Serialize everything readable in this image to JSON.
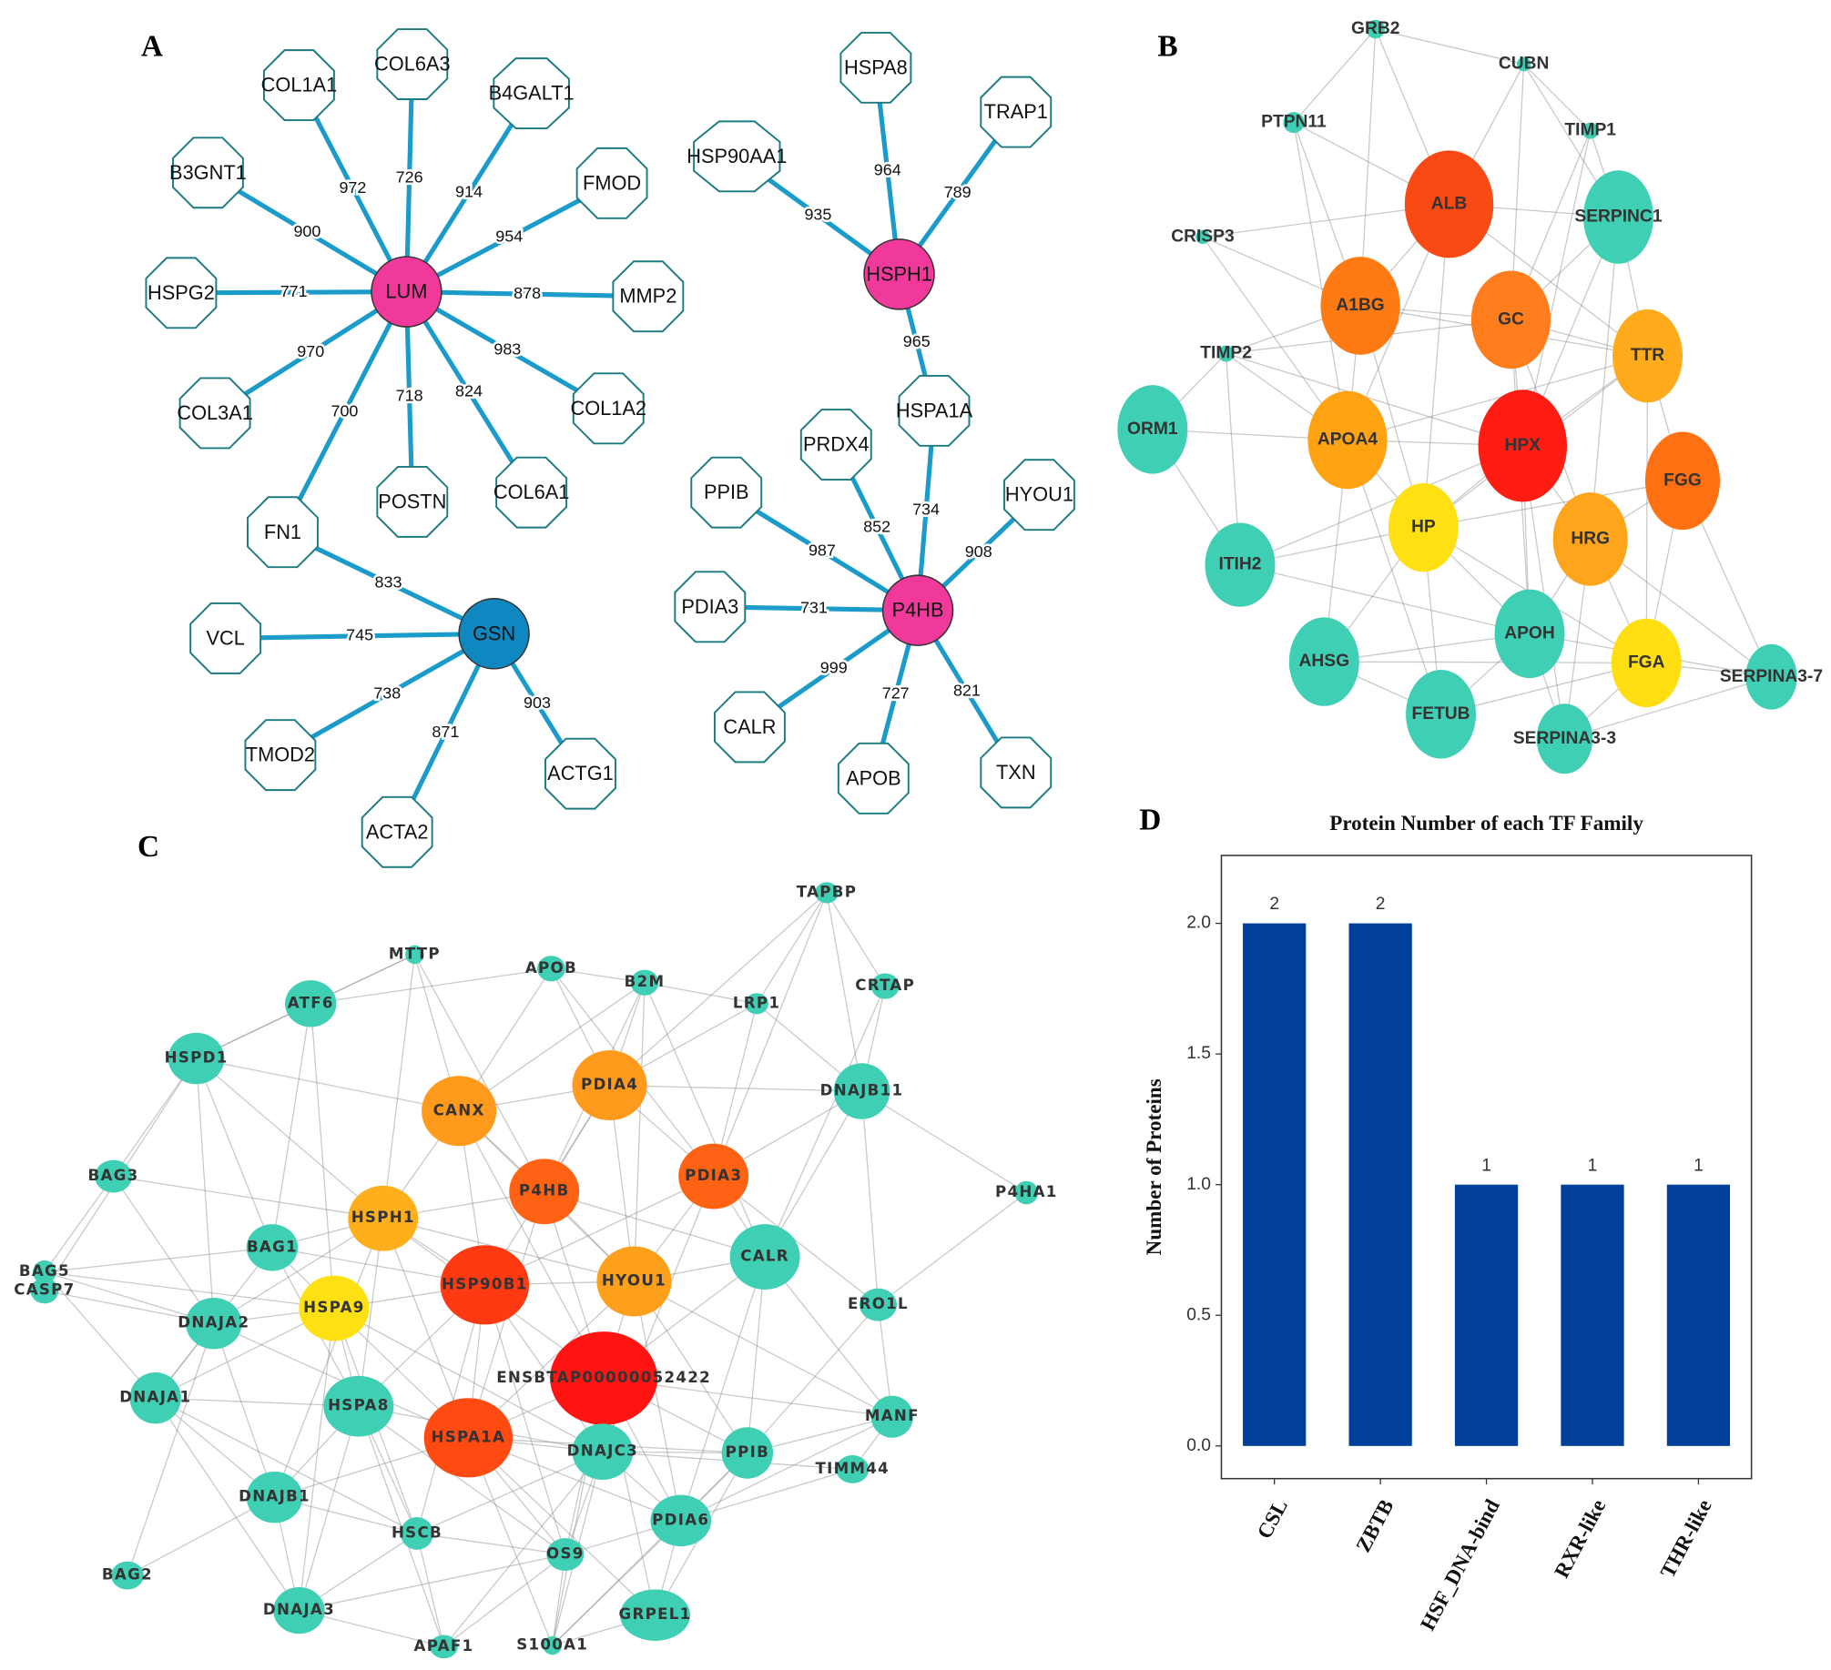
{
  "panel_labels": [
    "A",
    "B",
    "C",
    "D"
  ],
  "network_a": {
    "nodes": [
      {
        "label": "LUM",
        "shape": "circle",
        "color": "#f0399a"
      },
      {
        "label": "HSPH1",
        "shape": "circle",
        "color": "#f0399a"
      },
      {
        "label": "P4HB",
        "shape": "circle",
        "color": "#f0399a"
      },
      {
        "label": "GSN",
        "shape": "circle",
        "color": "#0f87c0"
      },
      {
        "label": "COL1A1",
        "shape": "octagon",
        "color": "#ffffff"
      },
      {
        "label": "COL6A3",
        "shape": "octagon",
        "color": "#ffffff"
      },
      {
        "label": "B4GALT1",
        "shape": "octagon",
        "color": "#ffffff"
      },
      {
        "label": "FMOD",
        "shape": "octagon",
        "color": "#ffffff"
      },
      {
        "label": "MMP2",
        "shape": "octagon",
        "color": "#ffffff"
      },
      {
        "label": "COL1A2",
        "shape": "octagon",
        "color": "#ffffff"
      },
      {
        "label": "COL6A1",
        "shape": "octagon",
        "color": "#ffffff"
      },
      {
        "label": "POSTN",
        "shape": "octagon",
        "color": "#ffffff"
      },
      {
        "label": "FN1",
        "shape": "octagon",
        "color": "#ffffff"
      },
      {
        "label": "COL3A1",
        "shape": "octagon",
        "color": "#ffffff"
      },
      {
        "label": "HSPG2",
        "shape": "octagon",
        "color": "#ffffff"
      },
      {
        "label": "B3GNT1",
        "shape": "octagon",
        "color": "#ffffff"
      },
      {
        "label": "VCL",
        "shape": "octagon",
        "color": "#ffffff"
      },
      {
        "label": "TMOD2",
        "shape": "octagon",
        "color": "#ffffff"
      },
      {
        "label": "ACTA2",
        "shape": "octagon",
        "color": "#ffffff"
      },
      {
        "label": "ACTG1",
        "shape": "octagon",
        "color": "#ffffff"
      },
      {
        "label": "HSPA8",
        "shape": "octagon",
        "color": "#ffffff"
      },
      {
        "label": "TRAP1",
        "shape": "octagon",
        "color": "#ffffff"
      },
      {
        "label": "HSP90AA1",
        "shape": "octagon",
        "color": "#ffffff"
      },
      {
        "label": "HSPA1A",
        "shape": "octagon",
        "color": "#ffffff"
      },
      {
        "label": "PRDX4",
        "shape": "octagon",
        "color": "#ffffff"
      },
      {
        "label": "PPIB",
        "shape": "octagon",
        "color": "#ffffff"
      },
      {
        "label": "HYOU1",
        "shape": "octagon",
        "color": "#ffffff"
      },
      {
        "label": "PDIA3",
        "shape": "octagon",
        "color": "#ffffff"
      },
      {
        "label": "CALR",
        "shape": "octagon",
        "color": "#ffffff"
      },
      {
        "label": "APOB",
        "shape": "octagon",
        "color": "#ffffff"
      },
      {
        "label": "TXN",
        "shape": "octagon",
        "color": "#ffffff"
      }
    ],
    "edges": [
      {
        "source": "LUM",
        "target": "COL1A1",
        "weight": 972
      },
      {
        "source": "LUM",
        "target": "COL6A3",
        "weight": 726
      },
      {
        "source": "LUM",
        "target": "B4GALT1",
        "weight": 914
      },
      {
        "source": "LUM",
        "target": "FMOD",
        "weight": 954
      },
      {
        "source": "LUM",
        "target": "MMP2",
        "weight": 878
      },
      {
        "source": "LUM",
        "target": "COL1A2",
        "weight": 983
      },
      {
        "source": "LUM",
        "target": "COL6A1",
        "weight": 824
      },
      {
        "source": "LUM",
        "target": "POSTN",
        "weight": 718
      },
      {
        "source": "LUM",
        "target": "FN1",
        "weight": 700
      },
      {
        "source": "LUM",
        "target": "COL3A1",
        "weight": 970
      },
      {
        "source": "LUM",
        "target": "HSPG2",
        "weight": 771
      },
      {
        "source": "LUM",
        "target": "B3GNT1",
        "weight": 900
      },
      {
        "source": "GSN",
        "target": "FN1",
        "weight": 833
      },
      {
        "source": "GSN",
        "target": "VCL",
        "weight": 745
      },
      {
        "source": "GSN",
        "target": "TMOD2",
        "weight": 738
      },
      {
        "source": "GSN",
        "target": "ACTA2",
        "weight": 871
      },
      {
        "source": "GSN",
        "target": "ACTG1",
        "weight": 903
      },
      {
        "source": "HSPH1",
        "target": "HSPA8",
        "weight": 964
      },
      {
        "source": "HSPH1",
        "target": "TRAP1",
        "weight": 789
      },
      {
        "source": "HSPH1",
        "target": "HSP90AA1",
        "weight": 935
      },
      {
        "source": "HSPH1",
        "target": "HSPA1A",
        "weight": 965
      },
      {
        "source": "P4HB",
        "target": "HSPA1A",
        "weight": 734
      },
      {
        "source": "P4HB",
        "target": "PRDX4",
        "weight": 852
      },
      {
        "source": "P4HB",
        "target": "PPIB",
        "weight": 987
      },
      {
        "source": "P4HB",
        "target": "HYOU1",
        "weight": 908
      },
      {
        "source": "P4HB",
        "target": "PDIA3",
        "weight": 731
      },
      {
        "source": "P4HB",
        "target": "CALR",
        "weight": 999
      },
      {
        "source": "P4HB",
        "target": "APOB",
        "weight": 727
      },
      {
        "source": "P4HB",
        "target": "TXN",
        "weight": 821
      }
    ]
  },
  "network_b": {
    "nodes": [
      {
        "label": "GRB2",
        "color": "#3fcfb4"
      },
      {
        "label": "CUBN",
        "color": "#3fcfb4"
      },
      {
        "label": "PTPN11",
        "color": "#3fcfb4"
      },
      {
        "label": "TIMP1",
        "color": "#3fcfb4"
      },
      {
        "label": "CRISP3",
        "color": "#3fcfb4"
      },
      {
        "label": "TIMP2",
        "color": "#3fcfb4"
      },
      {
        "label": "ALB",
        "color": "#f84a12"
      },
      {
        "label": "SERPINC1",
        "color": "#3fcfb4"
      },
      {
        "label": "A1BG",
        "color": "#ff7a12"
      },
      {
        "label": "GC",
        "color": "#ff7d1c"
      },
      {
        "label": "TTR",
        "color": "#ffab1c"
      },
      {
        "label": "ORM1",
        "color": "#3fcfb4"
      },
      {
        "label": "APOA4",
        "color": "#ffa312"
      },
      {
        "label": "HPX",
        "color": "#ff1c12"
      },
      {
        "label": "FGG",
        "color": "#ff7012"
      },
      {
        "label": "ITIH2",
        "color": "#3fcfb4"
      },
      {
        "label": "HP",
        "color": "#ffe012"
      },
      {
        "label": "HRG",
        "color": "#ffa51c"
      },
      {
        "label": "AHSG",
        "color": "#3fcfb4"
      },
      {
        "label": "APOH",
        "color": "#3fcfb4"
      },
      {
        "label": "FGA",
        "color": "#ffde12"
      },
      {
        "label": "SERPINA3-7",
        "color": "#3fcfb4"
      },
      {
        "label": "FETUB",
        "color": "#3fcfb4"
      },
      {
        "label": "SERPINA3-3",
        "color": "#3fcfb4"
      }
    ]
  },
  "network_c": {
    "nodes": [
      {
        "label": "TAPBP",
        "color": "#3fcfb4"
      },
      {
        "label": "MTTP",
        "color": "#3fcfb4"
      },
      {
        "label": "APOB",
        "color": "#3fcfb4"
      },
      {
        "label": "B2M",
        "color": "#3fcfb4"
      },
      {
        "label": "LRP1",
        "color": "#3fcfb4"
      },
      {
        "label": "CRTAP",
        "color": "#3fcfb4"
      },
      {
        "label": "ATF6",
        "color": "#3fcfb4"
      },
      {
        "label": "HSPD1",
        "color": "#3fcfb4"
      },
      {
        "label": "DNAJB11",
        "color": "#3fcfb4"
      },
      {
        "label": "CANX",
        "color": "#ff9a1c"
      },
      {
        "label": "PDIA4",
        "color": "#ff9a1c"
      },
      {
        "label": "BAG3",
        "color": "#3fcfb4"
      },
      {
        "label": "P4HA1",
        "color": "#3fcfb4"
      },
      {
        "label": "P4HB",
        "color": "#ff6212"
      },
      {
        "label": "PDIA3",
        "color": "#ff6212"
      },
      {
        "label": "HSPH1",
        "color": "#ffae1c"
      },
      {
        "label": "BAG1",
        "color": "#3fcfb4"
      },
      {
        "label": "CALR",
        "color": "#3fcfb4"
      },
      {
        "label": "BAG5",
        "color": "#3fcfb4"
      },
      {
        "label": "CASP7",
        "color": "#3fcfb4"
      },
      {
        "label": "HSP90B1",
        "color": "#ff3a12"
      },
      {
        "label": "HYOU1",
        "color": "#ffa01c"
      },
      {
        "label": "ERO1L",
        "color": "#3fcfb4"
      },
      {
        "label": "DNAJA2",
        "color": "#3fcfb4"
      },
      {
        "label": "HSPA9",
        "color": "#ffe012"
      },
      {
        "label": "ENSBTAP00000052422",
        "color": "#ff1412"
      },
      {
        "label": "DNAJA1",
        "color": "#3fcfb4"
      },
      {
        "label": "MANF",
        "color": "#3fcfb4"
      },
      {
        "label": "HSPA8",
        "color": "#3fcfb4"
      },
      {
        "label": "HSPA1A",
        "color": "#ff4a12"
      },
      {
        "label": "DNAJC3",
        "color": "#3fcfb4"
      },
      {
        "label": "PPIB",
        "color": "#3fcfb4"
      },
      {
        "label": "TIMM44",
        "color": "#3fcfb4"
      },
      {
        "label": "DNAJB1",
        "color": "#3fcfb4"
      },
      {
        "label": "HSCB",
        "color": "#3fcfb4"
      },
      {
        "label": "PDIA6",
        "color": "#3fcfb4"
      },
      {
        "label": "OS9",
        "color": "#3fcfb4"
      },
      {
        "label": "BAG2",
        "color": "#3fcfb4"
      },
      {
        "label": "DNAJA3",
        "color": "#3fcfb4"
      },
      {
        "label": "GRPEL1",
        "color": "#3fcfb4"
      },
      {
        "label": "APAF1",
        "color": "#3fcfb4"
      },
      {
        "label": "S100A1",
        "color": "#3fcfb4"
      }
    ]
  },
  "chart_data": {
    "type": "bar",
    "title": "Protein Number of each TF Family",
    "y_label": "Number of Proteins",
    "categories": [
      "CSL",
      "ZBTB",
      "HSF_DNA-bind",
      "RXR-like",
      "THR-like"
    ],
    "values": [
      2,
      2,
      1,
      1,
      1
    ],
    "color": "#003f9a",
    "ylim": [
      -0.125,
      2.26
    ],
    "yticks": [
      {
        "value": 0,
        "label": "0.0"
      },
      0.5,
      {
        "value": 1,
        "label": "1.0"
      },
      1.5,
      {
        "value": 2,
        "label": "2.0"
      }
    ],
    "grid": false
  }
}
